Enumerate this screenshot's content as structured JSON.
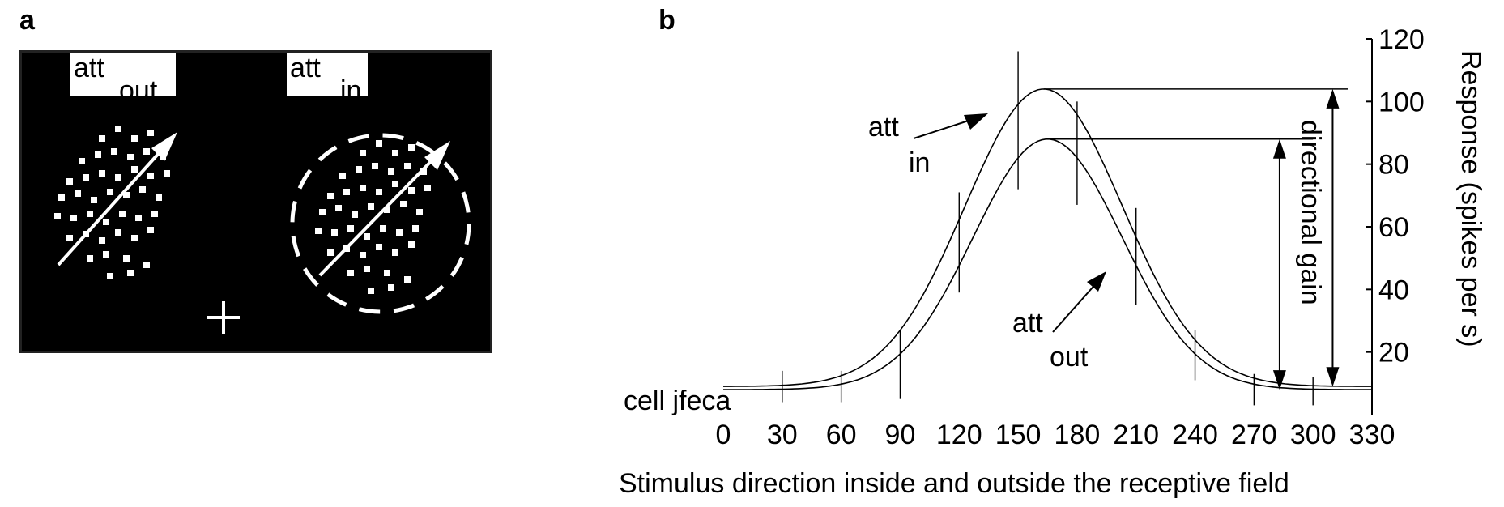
{
  "panel_a": {
    "label": "a",
    "left_label": {
      "main": "att",
      "sub": "out"
    },
    "right_label": {
      "main": "att",
      "sub": "in"
    }
  },
  "panel_b": {
    "label": "b"
  },
  "chart_data": {
    "type": "line",
    "xlabel": "Stimulus direction inside and outside the receptive field",
    "ylabel": "Response (spikes per s)",
    "x_ticks": [
      0,
      30,
      60,
      90,
      120,
      150,
      180,
      210,
      240,
      270,
      300,
      330
    ],
    "y_ticks": [
      20,
      40,
      60,
      80,
      100,
      120
    ],
    "xlim": [
      0,
      330
    ],
    "ylim": [
      0,
      120
    ],
    "series": [
      {
        "name": "att in",
        "baseline": 9,
        "peak": 104,
        "peak_x": 163,
        "sigma": 40
      },
      {
        "name": "att out",
        "baseline": 8,
        "peak": 88,
        "peak_x": 165,
        "sigma": 38
      }
    ],
    "error_bars": [
      {
        "x": 30,
        "low": 4,
        "high": 14
      },
      {
        "x": 60,
        "low": 4,
        "high": 14
      },
      {
        "x": 90,
        "low": 5,
        "high": 27
      },
      {
        "x": 120,
        "low": 39,
        "high": 71
      },
      {
        "x": 150,
        "low": 72,
        "high": 116
      },
      {
        "x": 180,
        "low": 67,
        "high": 100
      },
      {
        "x": 210,
        "low": 35,
        "high": 66
      },
      {
        "x": 240,
        "low": 11,
        "high": 27
      },
      {
        "x": 270,
        "low": 3,
        "high": 13
      },
      {
        "x": 300,
        "low": 3,
        "high": 12
      }
    ],
    "annotations": {
      "att_in": {
        "main": "att",
        "sub": "in"
      },
      "att_out": {
        "main": "att",
        "sub": "out"
      },
      "gain": "directional gain",
      "cell": "cell jfeca"
    }
  }
}
